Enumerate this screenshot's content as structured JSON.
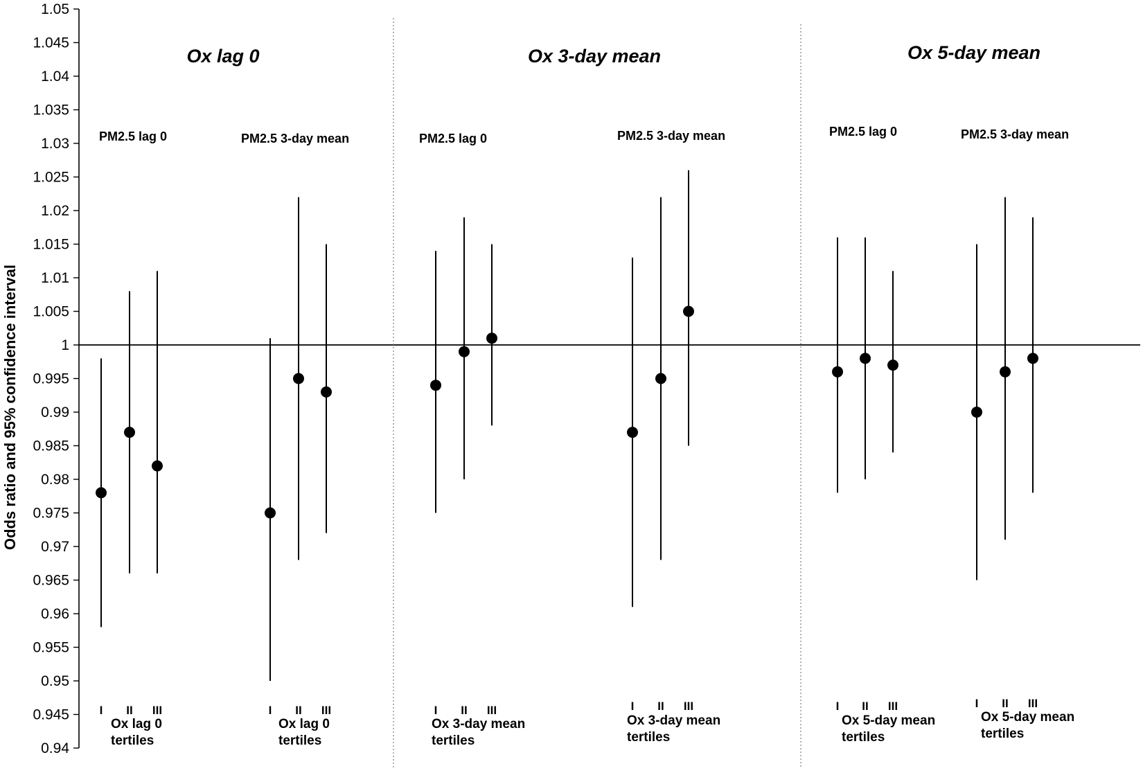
{
  "chart_data": {
    "type": "scatter",
    "ylabel": "Odds ratio and 95% confidence interval",
    "ylim": [
      0.94,
      1.05
    ],
    "ytick_step": 0.005,
    "ytick_labels": [
      "0.94",
      "0.945",
      "0.95",
      "0.955",
      "0.96",
      "0.965",
      "0.97",
      "0.975",
      "0.98",
      "0.985",
      "0.99",
      "0.995",
      "1",
      "1.005",
      "1.01",
      "1.015",
      "1.02",
      "1.025",
      "1.03",
      "1.035",
      "1.04",
      "1.045",
      "1.05"
    ],
    "reference_line": 1,
    "grid": false,
    "tertile_labels": [
      "I",
      "II",
      "III"
    ],
    "panels": [
      {
        "title": "Ox lag 0",
        "groups": [
          {
            "label": "PM2.5 lag 0",
            "footer": [
              "Ox lag 0",
              "tertiles"
            ],
            "points": [
              {
                "or": 0.978,
                "lo": 0.958,
                "hi": 0.998
              },
              {
                "or": 0.987,
                "lo": 0.966,
                "hi": 1.008
              },
              {
                "or": 0.982,
                "lo": 0.966,
                "hi": 1.011
              }
            ]
          },
          {
            "label": "PM2.5 3-day mean",
            "footer": [
              "Ox lag 0",
              "tertiles"
            ],
            "points": [
              {
                "or": 0.975,
                "lo": 0.95,
                "hi": 1.001
              },
              {
                "or": 0.995,
                "lo": 0.968,
                "hi": 1.022
              },
              {
                "or": 0.993,
                "lo": 0.972,
                "hi": 1.015
              }
            ]
          }
        ]
      },
      {
        "title": "Ox 3-day mean",
        "groups": [
          {
            "label": "PM2.5 lag 0",
            "footer": [
              "Ox 3-day mean",
              "tertiles"
            ],
            "points": [
              {
                "or": 0.994,
                "lo": 0.975,
                "hi": 1.014
              },
              {
                "or": 0.999,
                "lo": 0.98,
                "hi": 1.019
              },
              {
                "or": 1.001,
                "lo": 0.988,
                "hi": 1.015
              }
            ]
          },
          {
            "label": "PM2.5 3-day mean",
            "footer": [
              "Ox 3-day mean",
              "tertiles"
            ],
            "points": [
              {
                "or": 0.987,
                "lo": 0.961,
                "hi": 1.013
              },
              {
                "or": 0.995,
                "lo": 0.968,
                "hi": 1.022
              },
              {
                "or": 1.005,
                "lo": 0.985,
                "hi": 1.026
              }
            ]
          }
        ]
      },
      {
        "title": "Ox 5-day mean",
        "groups": [
          {
            "label": "PM2.5 lag 0",
            "footer": [
              "Ox 5-day mean",
              "tertiles"
            ],
            "points": [
              {
                "or": 0.996,
                "lo": 0.978,
                "hi": 1.016
              },
              {
                "or": 0.998,
                "lo": 0.98,
                "hi": 1.016
              },
              {
                "or": 0.997,
                "lo": 0.984,
                "hi": 1.011
              }
            ]
          },
          {
            "label": "PM2.5 3-day mean",
            "footer": [
              "Ox 5-day mean",
              "tertiles"
            ],
            "points": [
              {
                "or": 0.99,
                "lo": 0.965,
                "hi": 1.015
              },
              {
                "or": 0.996,
                "lo": 0.971,
                "hi": 1.022
              },
              {
                "or": 0.998,
                "lo": 0.978,
                "hi": 1.019
              }
            ]
          }
        ]
      }
    ]
  }
}
